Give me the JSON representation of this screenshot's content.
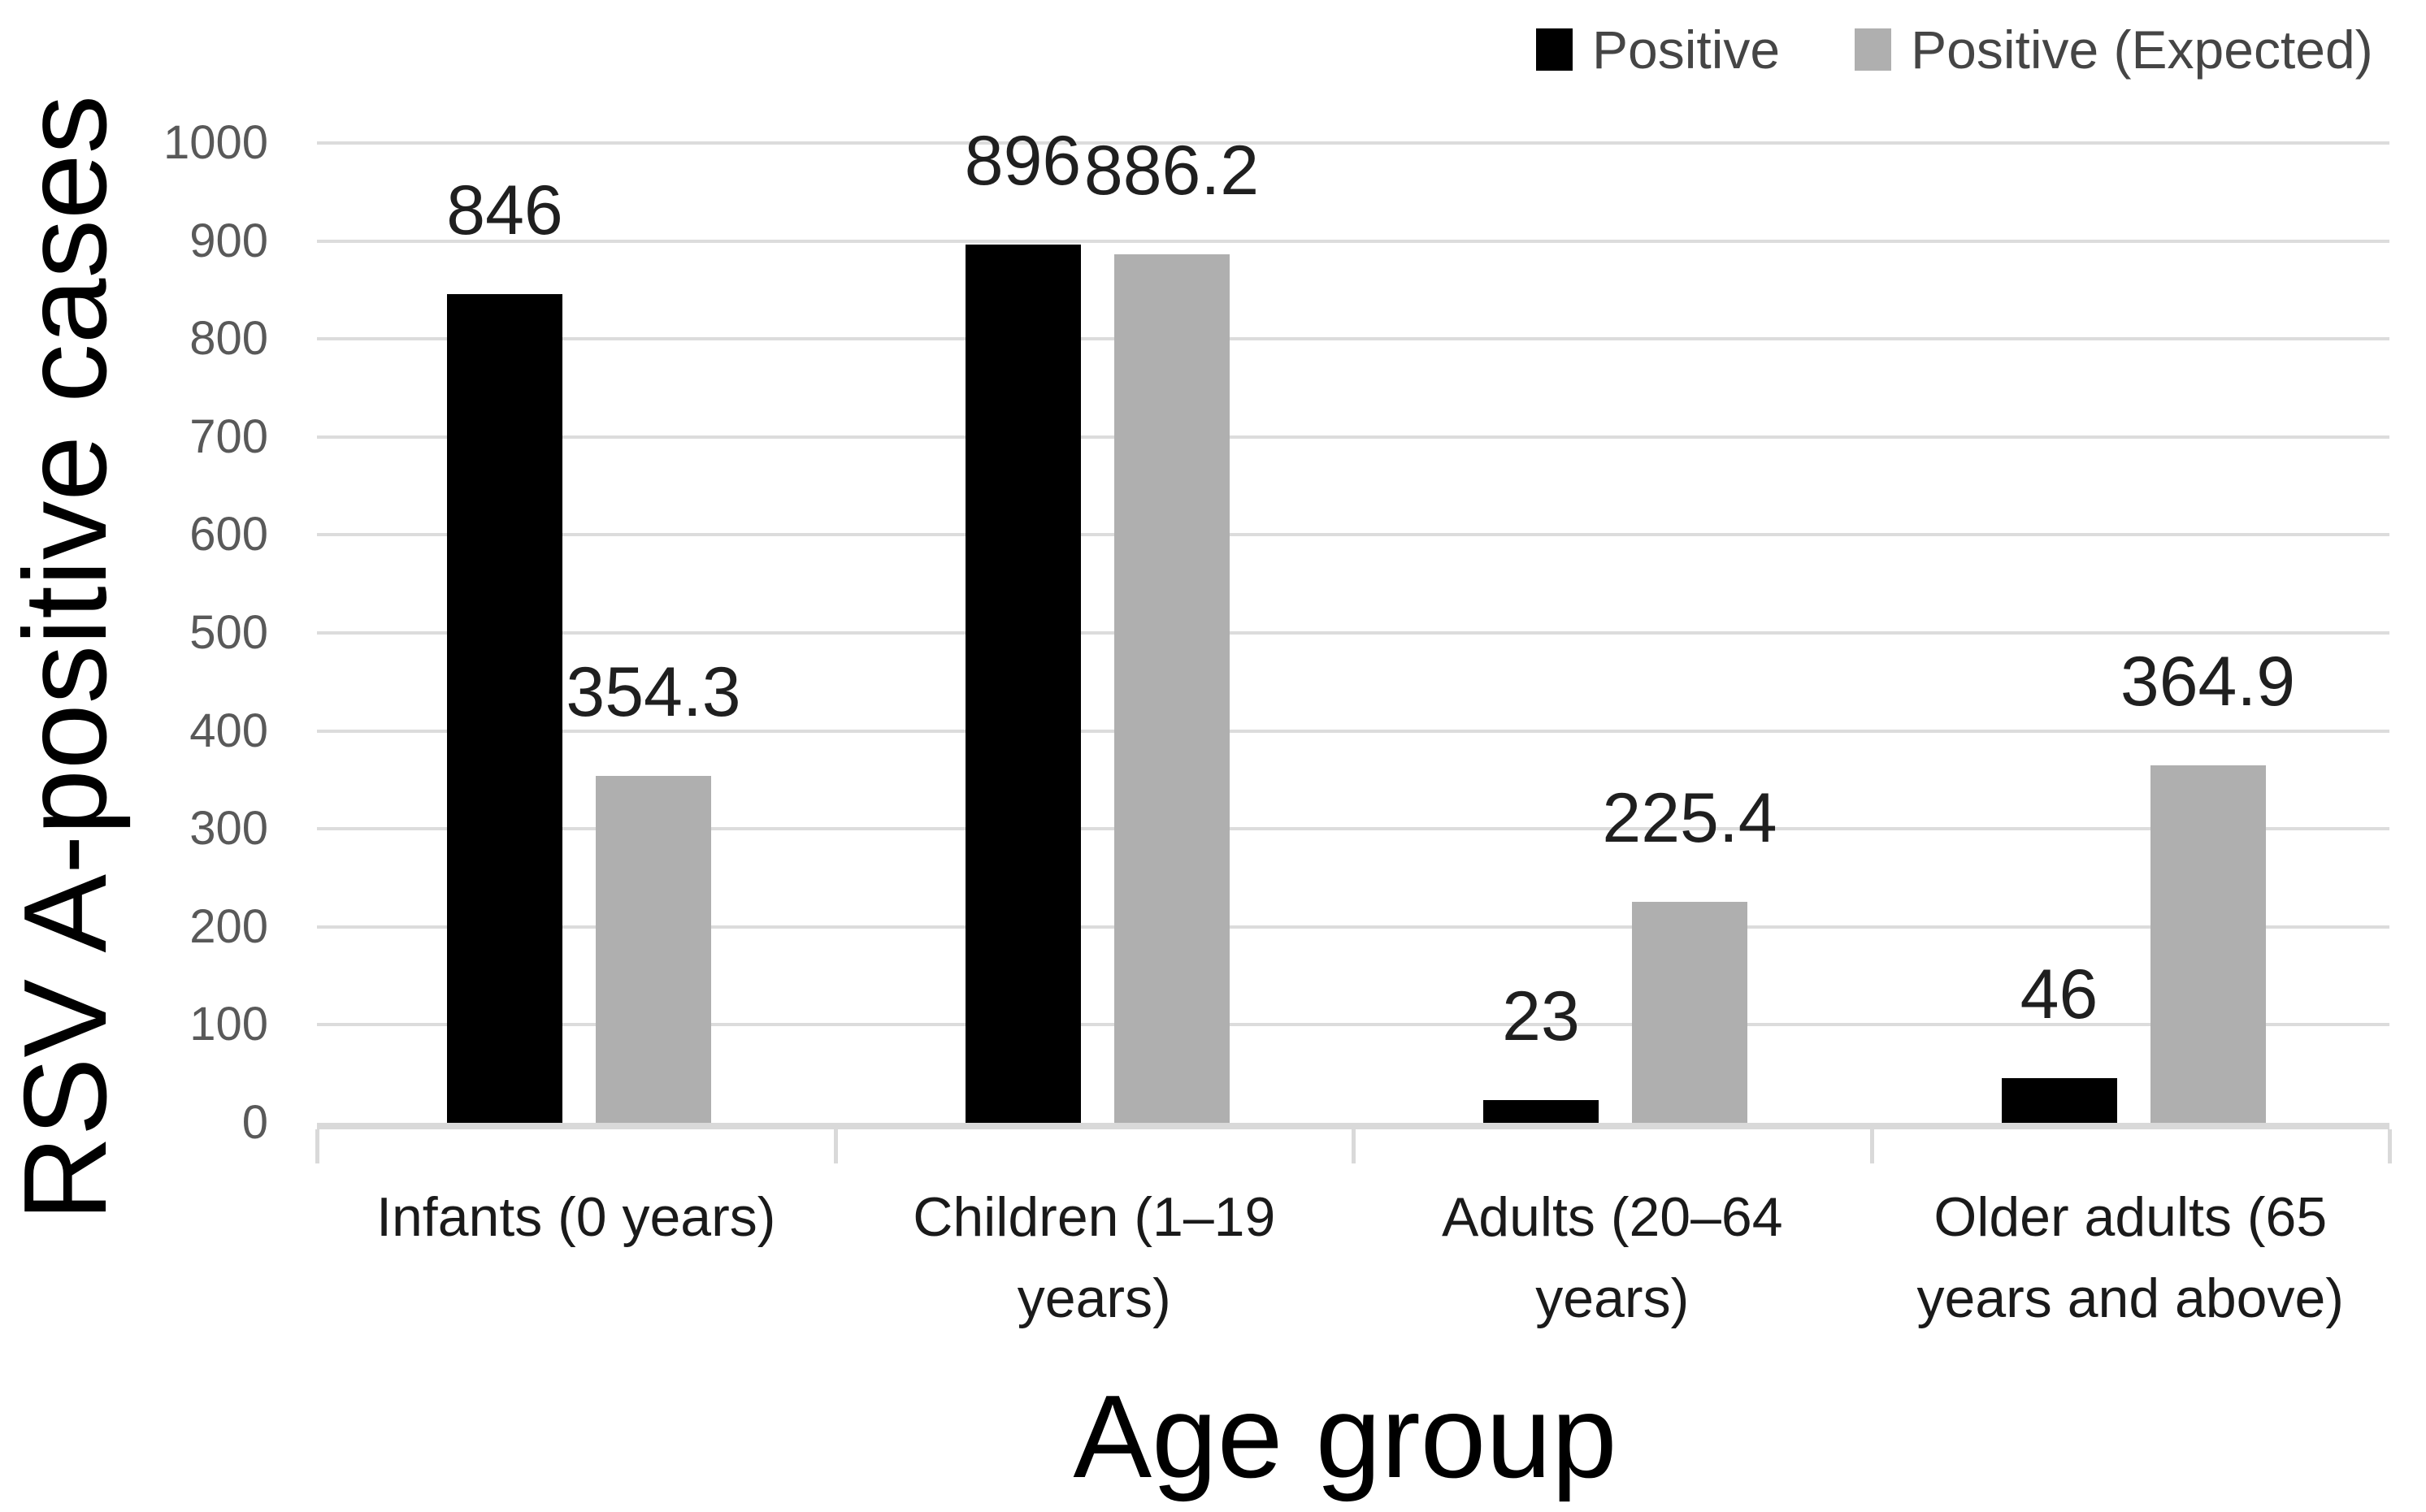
{
  "figure": {
    "background": "#FFFFFF"
  },
  "chart_data": {
    "type": "bar",
    "title": "",
    "xlabel": "Age group",
    "ylabel": "RSV A-positive cases",
    "categories": [
      {
        "label": "Infants (0 years)",
        "lines": [
          "Infants (0 years)"
        ]
      },
      {
        "label": "Children (1–19 years)",
        "lines": [
          "Children (1–19",
          "years)"
        ]
      },
      {
        "label": "Adults (20–64 years)",
        "lines": [
          "Adults (20–64",
          "years)"
        ]
      },
      {
        "label": "Older adults (65 years and above)",
        "lines": [
          "Older adults (65",
          "years and above)"
        ]
      }
    ],
    "series": [
      {
        "name": "Positive",
        "color": "#000000",
        "values": [
          846,
          896,
          23,
          46
        ],
        "labels": [
          "846",
          "896",
          "23",
          "46"
        ]
      },
      {
        "name": "Positive (Expected)",
        "color": "#AFAFAF",
        "values": [
          354.3,
          886.2,
          225.4,
          364.9
        ],
        "labels": [
          "354.3",
          "886.2",
          "225.4",
          "364.9"
        ]
      }
    ],
    "ylim": [
      0,
      1000
    ],
    "ytick_step": 100,
    "ytick_labels": [
      "0",
      "100",
      "200",
      "300",
      "400",
      "500",
      "600",
      "700",
      "800",
      "900",
      "1000"
    ],
    "grid": "horizontal",
    "legend_position": "top-right",
    "colors": {
      "gridline": "#DCDCDC",
      "axis_line": "#D9D9D9",
      "tick_mark": "#D9D9D9",
      "ytick_label": "#595959",
      "data_label": "#1F1F1F",
      "category_label": "#1A1A1A",
      "axis_title": "#000000",
      "legend_text": "#454545"
    }
  },
  "legend": {
    "items": [
      {
        "label": "Positive",
        "color": "#000000"
      },
      {
        "label": "Positive (Expected)",
        "color": "#AFAFAF"
      }
    ]
  }
}
